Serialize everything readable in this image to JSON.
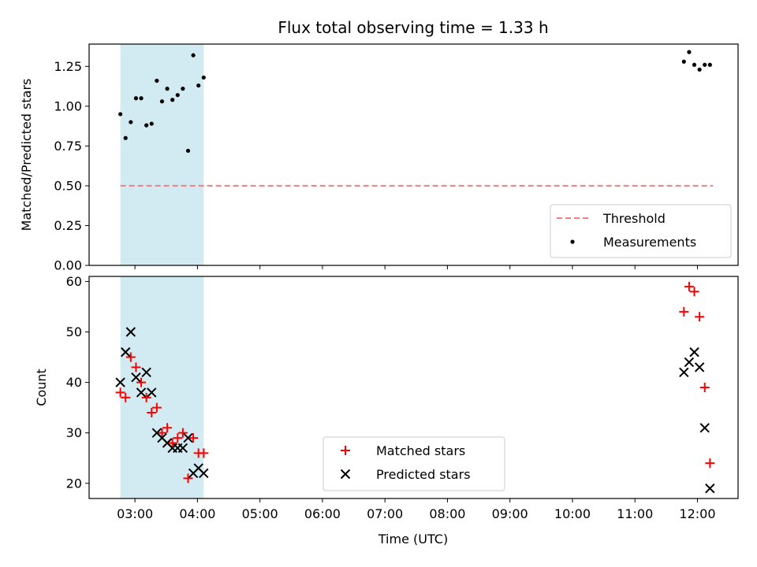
{
  "title": "Flux total observing time = 1.33 h",
  "xlabel": "Time (UTC)",
  "x_ticks": [
    "03:00",
    "04:00",
    "05:00",
    "06:00",
    "07:00",
    "08:00",
    "09:00",
    "10:00",
    "11:00",
    "12:00"
  ],
  "colors": {
    "threshold": "#f08080",
    "measurements": "#000000",
    "matched": "#ff0000",
    "predicted": "#000000",
    "shade": "#add8e6"
  },
  "chart_data": [
    {
      "type": "scatter",
      "ylabel": "Matched/Predicted stars",
      "xlim": [
        "02:16",
        "12:39"
      ],
      "ylim": [
        0,
        1.39
      ],
      "yticks": [
        "0.00",
        "0.25",
        "0.50",
        "0.75",
        "1.00",
        "1.25"
      ],
      "shaded_span": [
        "02:46",
        "04:06"
      ],
      "threshold": {
        "name": "Threshold",
        "value": 0.5,
        "x": [
          "02:46",
          "12:15"
        ]
      },
      "legend": [
        "Threshold",
        "Measurements"
      ],
      "legend_loc": "lower right",
      "series": [
        {
          "name": "Measurements",
          "x": [
            "02:46",
            "02:51",
            "02:56",
            "03:01",
            "03:06",
            "03:11",
            "03:16",
            "03:21",
            "03:26",
            "03:31",
            "03:36",
            "03:41",
            "03:46",
            "03:51",
            "03:56",
            "04:01",
            "04:06",
            "11:47",
            "11:52",
            "11:57",
            "12:02",
            "12:07",
            "12:12"
          ],
          "y": [
            0.95,
            0.8,
            0.9,
            1.05,
            1.05,
            0.88,
            0.89,
            1.16,
            1.03,
            1.11,
            1.04,
            1.07,
            1.11,
            0.72,
            1.32,
            1.13,
            1.18,
            1.28,
            1.34,
            1.26,
            1.23,
            1.26,
            1.26
          ]
        }
      ]
    },
    {
      "type": "scatter",
      "ylabel": "Count",
      "xlim": [
        "02:16",
        "12:39"
      ],
      "ylim": [
        17,
        61
      ],
      "yticks": [
        "20",
        "30",
        "40",
        "50",
        "60"
      ],
      "shaded_span": [
        "02:46",
        "04:06"
      ],
      "legend": [
        "Matched stars",
        "Predicted stars"
      ],
      "legend_loc": "lower center",
      "series": [
        {
          "name": "Matched stars",
          "marker": "plus",
          "x": [
            "02:46",
            "02:51",
            "02:56",
            "03:01",
            "03:06",
            "03:11",
            "03:16",
            "03:21",
            "03:26",
            "03:31",
            "03:36",
            "03:41",
            "03:46",
            "03:51",
            "03:56",
            "04:01",
            "04:06",
            "11:47",
            "11:52",
            "11:57",
            "12:02",
            "12:07",
            "12:12"
          ],
          "y": [
            38,
            37,
            45,
            43,
            40,
            37,
            34,
            35,
            30,
            31,
            28,
            29,
            30,
            21,
            29,
            26,
            26,
            54,
            59,
            58,
            53,
            39,
            24
          ]
        },
        {
          "name": "Predicted stars",
          "marker": "x",
          "x": [
            "02:46",
            "02:51",
            "02:56",
            "03:01",
            "03:06",
            "03:11",
            "03:16",
            "03:21",
            "03:26",
            "03:31",
            "03:36",
            "03:41",
            "03:46",
            "03:51",
            "03:56",
            "04:01",
            "04:06",
            "11:47",
            "11:52",
            "11:57",
            "12:02",
            "12:07",
            "12:12"
          ],
          "y": [
            40,
            46,
            50,
            41,
            38,
            42,
            38,
            30,
            29,
            28,
            27,
            27,
            27,
            29,
            22,
            23,
            22,
            42,
            44,
            46,
            43,
            31,
            19
          ]
        }
      ]
    }
  ]
}
